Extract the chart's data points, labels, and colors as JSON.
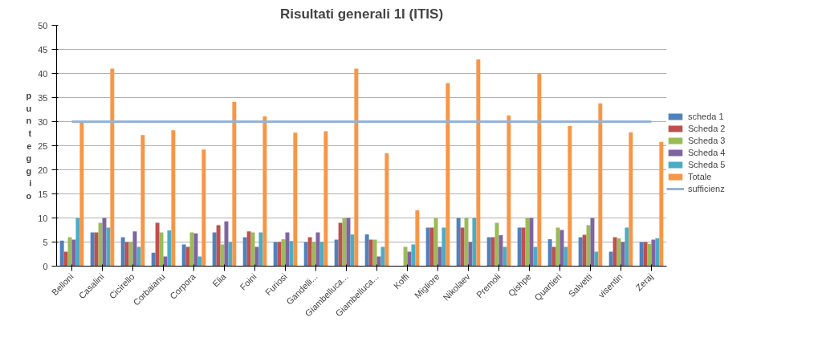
{
  "chart_data": {
    "type": "bar",
    "title": "Risultati generali 1I (ITIS)",
    "ylabel": "punteggio",
    "categories": [
      "Belloni",
      "Casalini",
      "Cicirello",
      "Corbaianu",
      "Corpora",
      "Elia",
      "Foini",
      "Furiosi",
      "Gandelli...",
      "Giambelluca...",
      "Giambelluca...",
      "Koffi",
      "Migliore",
      "Nikolaev",
      "Premoli",
      "Qishpe",
      "Quartieri",
      "Salvetti",
      "visentin",
      "Zeraj"
    ],
    "series": [
      {
        "name": "scheda 1",
        "color": "#4f81bd",
        "values": [
          5.3,
          7,
          6,
          2.8,
          4.5,
          7,
          6,
          5,
          5,
          5.5,
          6.6,
          null,
          8,
          10,
          6,
          8,
          5.6,
          6,
          3,
          5
        ]
      },
      {
        "name": "Scheda 2",
        "color": "#c0504d",
        "values": [
          3,
          7,
          5,
          9,
          4,
          8.5,
          7.2,
          5,
          6,
          9,
          5.5,
          null,
          8,
          8,
          6,
          8,
          4,
          6.5,
          6,
          5
        ]
      },
      {
        "name": "Scheda 3",
        "color": "#9bbb59",
        "values": [
          6,
          9,
          5,
          7,
          7,
          4.5,
          7,
          5.6,
          5,
          10,
          5.5,
          4,
          10,
          10,
          9,
          10,
          8,
          8.5,
          5.8,
          4.6
        ]
      },
      {
        "name": "Scheda 4",
        "color": "#8064a2",
        "values": [
          5.5,
          10,
          7.2,
          2,
          6.8,
          9.3,
          4,
          7,
          7,
          10,
          2,
          3,
          4,
          5,
          6.4,
          10,
          7.5,
          10,
          5,
          5.5
        ]
      },
      {
        "name": "Scheda 5",
        "color": "#4bacc6",
        "values": [
          10,
          8,
          4,
          7.4,
          2,
          5,
          7,
          5.2,
          5,
          6.6,
          4,
          4.5,
          8,
          10,
          4,
          4,
          4,
          3,
          8,
          5.8
        ]
      },
      {
        "name": "Totale",
        "color": "#f79646",
        "values": [
          30,
          41,
          27.2,
          28.2,
          24.2,
          34.1,
          31.1,
          27.7,
          28,
          41,
          23.4,
          11.6,
          38,
          42.9,
          31.3,
          40,
          29.1,
          33.8,
          27.8,
          25.8
        ]
      },
      {
        "name": "sufficienz",
        "type": "line",
        "color": "#95b3d7",
        "values": [
          30,
          30,
          30,
          30,
          30,
          30,
          30,
          30,
          30,
          30,
          30,
          30,
          30,
          30,
          30,
          30,
          30,
          30,
          30,
          30
        ]
      }
    ],
    "ylim": [
      0,
      50
    ],
    "yticks": [
      0,
      5,
      10,
      15,
      20,
      25,
      30,
      35,
      40,
      45,
      50
    ],
    "grid": "y",
    "legend": "right"
  }
}
